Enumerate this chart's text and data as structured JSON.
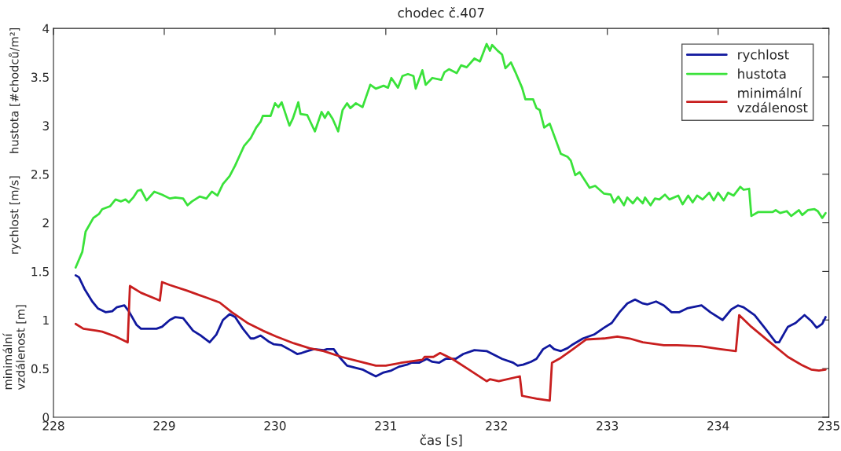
{
  "chart_data": {
    "type": "line",
    "title": "chodec č.407",
    "xlabel": "čas [s]",
    "annotations": [
      "hustota [#chodců/m²]",
      "rychlost [m/s]",
      "minimální\nvzdálenost [m]"
    ],
    "xlim": [
      228,
      235
    ],
    "xticks": [
      228,
      229,
      230,
      231,
      232,
      233,
      234,
      235
    ],
    "ylim": [
      0,
      4
    ],
    "yticks": [
      0,
      0.5,
      1,
      1.5,
      2,
      2.5,
      3,
      3.5,
      4
    ],
    "grid": false,
    "legend": "top right",
    "marker": "none",
    "line_style": "solid",
    "series": [
      {
        "name": "rychlost",
        "color": "#10189e",
        "x": [
          228.2,
          228.23,
          228.28,
          228.35,
          228.4,
          228.47,
          228.53,
          228.57,
          228.64,
          228.68,
          228.75,
          228.79,
          228.93,
          228.98,
          229.05,
          229.1,
          229.17,
          229.26,
          229.33,
          229.41,
          229.47,
          229.53,
          229.59,
          229.64,
          229.71,
          229.78,
          229.81,
          229.87,
          229.94,
          229.99,
          230.06,
          230.14,
          230.2,
          230.24,
          230.29,
          230.35,
          230.44,
          230.47,
          230.53,
          230.58,
          230.65,
          230.72,
          230.79,
          230.84,
          230.91,
          230.98,
          231.05,
          231.12,
          231.19,
          231.23,
          231.3,
          231.37,
          231.42,
          231.48,
          231.54,
          231.63,
          231.7,
          231.8,
          231.91,
          231.98,
          232.05,
          232.15,
          232.19,
          232.24,
          232.31,
          232.36,
          232.42,
          232.48,
          232.52,
          232.58,
          232.64,
          232.69,
          232.78,
          232.88,
          232.97,
          233.04,
          233.11,
          233.18,
          233.25,
          233.32,
          233.36,
          233.44,
          233.51,
          233.58,
          233.65,
          233.72,
          233.85,
          233.93,
          234.04,
          234.12,
          234.18,
          234.23,
          234.33,
          234.42,
          234.52,
          234.55,
          234.63,
          234.7,
          234.78,
          234.84,
          234.89,
          234.94,
          234.97
        ],
        "values": [
          1.46,
          1.44,
          1.32,
          1.19,
          1.12,
          1.08,
          1.09,
          1.13,
          1.15,
          1.09,
          0.95,
          0.91,
          0.91,
          0.93,
          1.0,
          1.03,
          1.02,
          0.89,
          0.84,
          0.77,
          0.85,
          1.0,
          1.06,
          1.03,
          0.91,
          0.81,
          0.81,
          0.84,
          0.78,
          0.75,
          0.74,
          0.69,
          0.65,
          0.66,
          0.68,
          0.7,
          0.69,
          0.7,
          0.7,
          0.62,
          0.53,
          0.51,
          0.49,
          0.46,
          0.42,
          0.46,
          0.48,
          0.52,
          0.54,
          0.56,
          0.56,
          0.6,
          0.57,
          0.56,
          0.6,
          0.6,
          0.65,
          0.69,
          0.68,
          0.64,
          0.6,
          0.56,
          0.53,
          0.54,
          0.57,
          0.6,
          0.7,
          0.74,
          0.7,
          0.68,
          0.71,
          0.75,
          0.81,
          0.85,
          0.92,
          0.97,
          1.08,
          1.17,
          1.21,
          1.17,
          1.16,
          1.19,
          1.15,
          1.08,
          1.08,
          1.12,
          1.15,
          1.08,
          1.0,
          1.11,
          1.15,
          1.13,
          1.05,
          0.92,
          0.77,
          0.77,
          0.93,
          0.97,
          1.05,
          0.99,
          0.92,
          0.96,
          1.03
        ]
      },
      {
        "name": "hustota",
        "color": "#3ae23a",
        "x": [
          228.2,
          228.26,
          228.29,
          228.36,
          228.41,
          228.44,
          228.51,
          228.56,
          228.61,
          228.65,
          228.68,
          228.72,
          228.76,
          228.79,
          228.84,
          228.91,
          228.98,
          229.05,
          229.1,
          229.17,
          229.21,
          229.25,
          229.32,
          229.38,
          229.43,
          229.48,
          229.53,
          229.59,
          229.64,
          229.68,
          229.72,
          229.78,
          229.83,
          229.87,
          229.89,
          229.96,
          230.0,
          230.03,
          230.06,
          230.13,
          230.16,
          230.21,
          230.23,
          230.29,
          230.36,
          230.42,
          230.45,
          230.48,
          230.52,
          230.57,
          230.61,
          230.65,
          230.68,
          230.73,
          230.79,
          230.86,
          230.91,
          230.98,
          231.02,
          231.05,
          231.11,
          231.15,
          231.2,
          231.25,
          231.27,
          231.33,
          231.36,
          231.42,
          231.5,
          231.53,
          231.57,
          231.64,
          231.68,
          231.73,
          231.8,
          231.85,
          231.91,
          231.94,
          231.96,
          232.01,
          232.05,
          232.08,
          232.13,
          232.17,
          232.23,
          232.26,
          232.33,
          232.36,
          232.39,
          232.43,
          232.48,
          232.58,
          232.64,
          232.67,
          232.71,
          232.75,
          232.84,
          232.89,
          232.97,
          233.03,
          233.06,
          233.1,
          233.15,
          233.18,
          233.23,
          233.27,
          233.32,
          233.34,
          233.39,
          233.43,
          233.47,
          233.52,
          233.56,
          233.64,
          233.68,
          233.73,
          233.77,
          233.81,
          233.86,
          233.92,
          233.96,
          234.0,
          234.05,
          234.09,
          234.14,
          234.2,
          234.23,
          234.28,
          234.3,
          234.36,
          234.42,
          234.49,
          234.52,
          234.56,
          234.62,
          234.66,
          234.73,
          234.76,
          234.81,
          234.87,
          234.9,
          234.94,
          234.97
        ],
        "values": [
          1.54,
          1.7,
          1.91,
          2.05,
          2.09,
          2.14,
          2.17,
          2.24,
          2.22,
          2.24,
          2.21,
          2.26,
          2.33,
          2.34,
          2.23,
          2.32,
          2.29,
          2.25,
          2.26,
          2.25,
          2.18,
          2.22,
          2.27,
          2.25,
          2.32,
          2.28,
          2.4,
          2.48,
          2.59,
          2.69,
          2.79,
          2.87,
          2.98,
          3.04,
          3.1,
          3.1,
          3.23,
          3.19,
          3.24,
          3.0,
          3.07,
          3.24,
          3.12,
          3.11,
          2.94,
          3.14,
          3.08,
          3.14,
          3.07,
          2.94,
          3.16,
          3.23,
          3.18,
          3.23,
          3.19,
          3.42,
          3.38,
          3.41,
          3.39,
          3.49,
          3.39,
          3.51,
          3.53,
          3.51,
          3.38,
          3.57,
          3.42,
          3.49,
          3.47,
          3.55,
          3.58,
          3.54,
          3.62,
          3.6,
          3.69,
          3.66,
          3.84,
          3.77,
          3.83,
          3.77,
          3.73,
          3.59,
          3.65,
          3.55,
          3.39,
          3.27,
          3.27,
          3.18,
          3.16,
          2.98,
          3.02,
          2.71,
          2.68,
          2.64,
          2.49,
          2.52,
          2.36,
          2.38,
          2.3,
          2.29,
          2.21,
          2.27,
          2.18,
          2.26,
          2.2,
          2.26,
          2.2,
          2.26,
          2.18,
          2.25,
          2.24,
          2.29,
          2.24,
          2.28,
          2.19,
          2.28,
          2.21,
          2.28,
          2.24,
          2.31,
          2.23,
          2.31,
          2.23,
          2.31,
          2.28,
          2.37,
          2.34,
          2.35,
          2.07,
          2.11,
          2.11,
          2.11,
          2.13,
          2.1,
          2.12,
          2.07,
          2.13,
          2.08,
          2.13,
          2.14,
          2.12,
          2.05,
          2.1
        ]
      },
      {
        "name": "minimální\nvzdálenost",
        "color": "#c81e1e",
        "x": [
          228.2,
          228.27,
          228.39,
          228.44,
          228.56,
          228.67,
          228.69,
          228.79,
          228.96,
          228.98,
          229.05,
          229.21,
          229.38,
          229.5,
          229.61,
          229.75,
          229.89,
          230.01,
          230.17,
          230.31,
          230.44,
          230.6,
          230.77,
          230.91,
          231.0,
          231.14,
          231.33,
          231.35,
          231.43,
          231.49,
          231.6,
          231.75,
          231.91,
          231.94,
          232.02,
          232.21,
          232.23,
          232.36,
          232.48,
          232.5,
          232.58,
          232.69,
          232.81,
          232.97,
          233.09,
          233.2,
          233.32,
          233.51,
          233.63,
          233.84,
          234.02,
          234.16,
          234.19,
          234.3,
          234.49,
          234.63,
          234.75,
          234.84,
          234.91,
          234.97
        ],
        "values": [
          0.96,
          0.91,
          0.89,
          0.88,
          0.83,
          0.77,
          1.35,
          1.28,
          1.2,
          1.39,
          1.36,
          1.3,
          1.23,
          1.18,
          1.08,
          0.97,
          0.89,
          0.83,
          0.76,
          0.71,
          0.68,
          0.62,
          0.57,
          0.53,
          0.53,
          0.56,
          0.59,
          0.62,
          0.62,
          0.66,
          0.6,
          0.49,
          0.37,
          0.39,
          0.37,
          0.42,
          0.22,
          0.19,
          0.17,
          0.56,
          0.61,
          0.7,
          0.8,
          0.81,
          0.83,
          0.81,
          0.77,
          0.74,
          0.74,
          0.73,
          0.7,
          0.68,
          1.05,
          0.93,
          0.75,
          0.62,
          0.54,
          0.49,
          0.48,
          0.49
        ]
      }
    ]
  }
}
